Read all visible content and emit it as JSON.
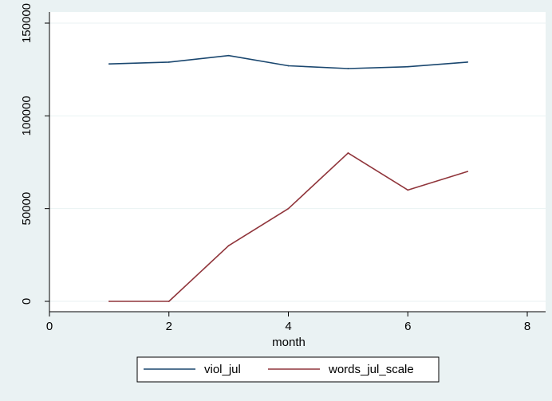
{
  "chart_data": {
    "type": "line",
    "xlabel": "month",
    "ylabel": "",
    "xlim": [
      0,
      8
    ],
    "ylim": [
      0,
      150000
    ],
    "x_ticks": [
      0,
      2,
      4,
      6,
      8
    ],
    "y_ticks": [
      0,
      50000,
      100000,
      150000
    ],
    "x_tick_labels": [
      "0",
      "2",
      "4",
      "6",
      "8"
    ],
    "y_tick_labels": [
      "0",
      "50000",
      "100000",
      "150000"
    ],
    "grid": "horizontal",
    "legend_position": "bottom",
    "x": [
      1,
      2,
      3,
      4,
      5,
      6,
      7
    ],
    "series": [
      {
        "name": "viol_jul",
        "color": "#1a476f",
        "values": [
          128000,
          129000,
          132500,
          127000,
          125500,
          126500,
          129000
        ]
      },
      {
        "name": "words_jul_scale",
        "color": "#90353b",
        "values": [
          0,
          0,
          30000,
          50000,
          80000,
          60000,
          70000
        ]
      }
    ]
  },
  "colors": {
    "background": "#eaf2f3",
    "plot_background": "#ffffff",
    "grid": "#eaf2f3"
  }
}
